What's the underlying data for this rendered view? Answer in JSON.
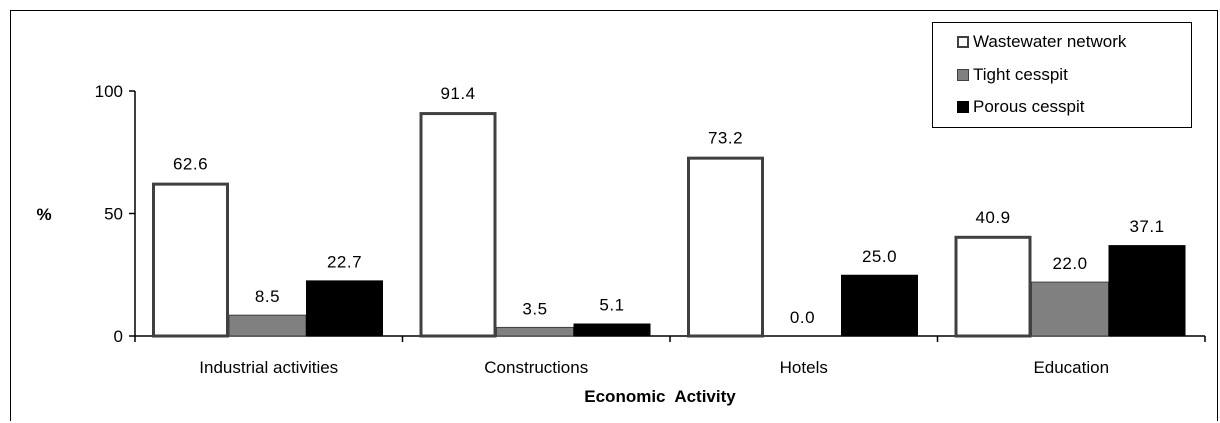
{
  "chart_data": {
    "type": "bar",
    "categories": [
      "Industrial activities",
      "Constructions",
      "Hotels",
      "Education"
    ],
    "series": [
      {
        "name": "Wastewater network",
        "values": [
          62.6,
          91.4,
          73.2,
          40.9
        ],
        "style": "outline",
        "color": "#404040"
      },
      {
        "name": "Tight cesspit",
        "values": [
          8.5,
          3.5,
          0.0,
          22.0
        ],
        "style": "fill",
        "color": "#808080"
      },
      {
        "name": "Porous cesspit",
        "values": [
          22.7,
          5.1,
          25.0,
          37.1
        ],
        "style": "fill",
        "color": "#000000"
      }
    ],
    "data_labels": [
      [
        "62.6",
        "91.4",
        "73.2",
        "40.9"
      ],
      [
        "8.5",
        "3.5",
        "0.0",
        "22.0"
      ],
      [
        "22.7",
        "5.1",
        "25.0",
        "37.1"
      ]
    ],
    "xlabel": "Economic  Activity",
    "ylabel": "%",
    "ylim": [
      0,
      100
    ],
    "yticks": [
      "0",
      "50",
      "100"
    ],
    "grid": false,
    "legend_position": "top-right"
  }
}
